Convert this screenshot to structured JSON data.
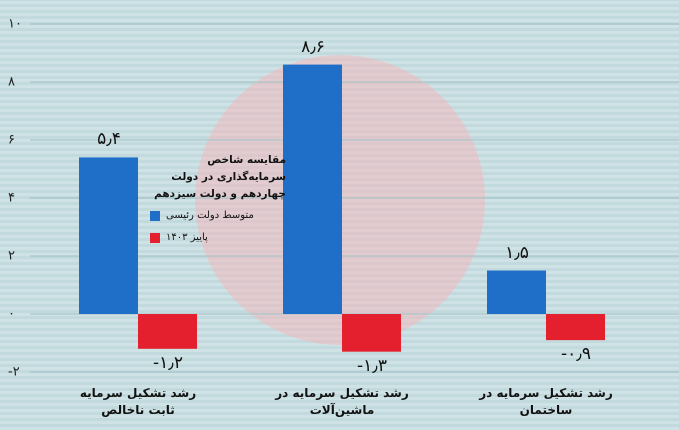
{
  "chart_data": {
    "type": "bar",
    "legend_title": "مقایسه شاخص سرمایه‌گذاری در دولت چهاردهم و دولت سیزدهم",
    "categories": [
      "رشد تشکیل سرمایه ثابت ناخالص",
      "رشد تشکیل سرمایه در ماشین‌آلات",
      "رشد تشکیل سرمایه در ساختمان"
    ],
    "series": [
      {
        "name": "متوسط دولت رئیسی",
        "color": "#1f6fc8",
        "values": [
          5.4,
          8.6,
          1.5
        ],
        "value_labels": [
          "۵٫۴",
          "۸٫۶",
          "۱٫۵"
        ]
      },
      {
        "name": "پاییز ۱۴۰۳",
        "color": "#e5202e",
        "values": [
          -1.2,
          -1.3,
          -0.9
        ],
        "value_labels": [
          "-۱٫۲",
          "-۱٫۳",
          "-۰٫۹"
        ]
      }
    ],
    "ylim": [
      -2,
      10
    ],
    "yticks": [
      {
        "value": -2,
        "label": "-۲"
      },
      {
        "value": 0,
        "label": "۰"
      },
      {
        "value": 2,
        "label": "۲"
      },
      {
        "value": 4,
        "label": "۴"
      },
      {
        "value": 6,
        "label": "۶"
      },
      {
        "value": 8,
        "label": "۸"
      },
      {
        "value": 10,
        "label": "۱۰"
      }
    ],
    "grid": true
  }
}
